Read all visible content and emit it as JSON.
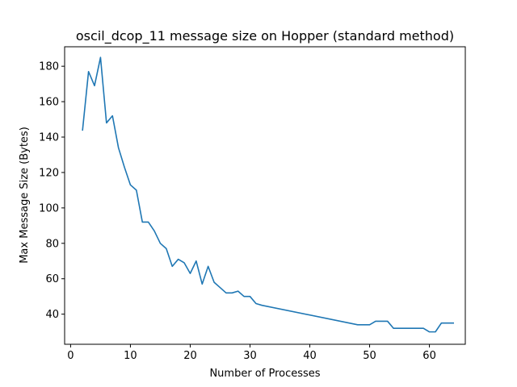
{
  "chart_data": {
    "type": "line",
    "title": "oscil_dcop_11 message size on Hopper (standard method)",
    "xlabel": "Number of Processes",
    "ylabel": "Max Message Size (Bytes)",
    "xlim": [
      -1,
      66
    ],
    "ylim": [
      23,
      191
    ],
    "xticks": [
      0,
      10,
      20,
      30,
      40,
      50,
      60
    ],
    "yticks": [
      40,
      60,
      80,
      100,
      120,
      140,
      160,
      180
    ],
    "grid": false,
    "series": [
      {
        "name": "max message size",
        "color": "#1f77b4",
        "x": [
          2,
          3,
          4,
          5,
          6,
          7,
          8,
          9,
          10,
          11,
          12,
          13,
          14,
          15,
          16,
          17,
          18,
          19,
          20,
          21,
          22,
          23,
          24,
          25,
          26,
          27,
          28,
          29,
          30,
          31,
          32,
          48,
          49,
          50,
          51,
          52,
          53,
          54,
          55,
          56,
          57,
          58,
          59,
          60,
          61,
          62,
          63,
          64
        ],
        "y": [
          144,
          177,
          169,
          185,
          148,
          152,
          134,
          123,
          113,
          110,
          92,
          92,
          87,
          80,
          77,
          67,
          71,
          69,
          63,
          70,
          57,
          67,
          58,
          55,
          52,
          52,
          53,
          50,
          50,
          46,
          45,
          34,
          34,
          34,
          36,
          36,
          36,
          32,
          32,
          32,
          32,
          32,
          32,
          30,
          30,
          35,
          35,
          35
        ]
      }
    ]
  }
}
